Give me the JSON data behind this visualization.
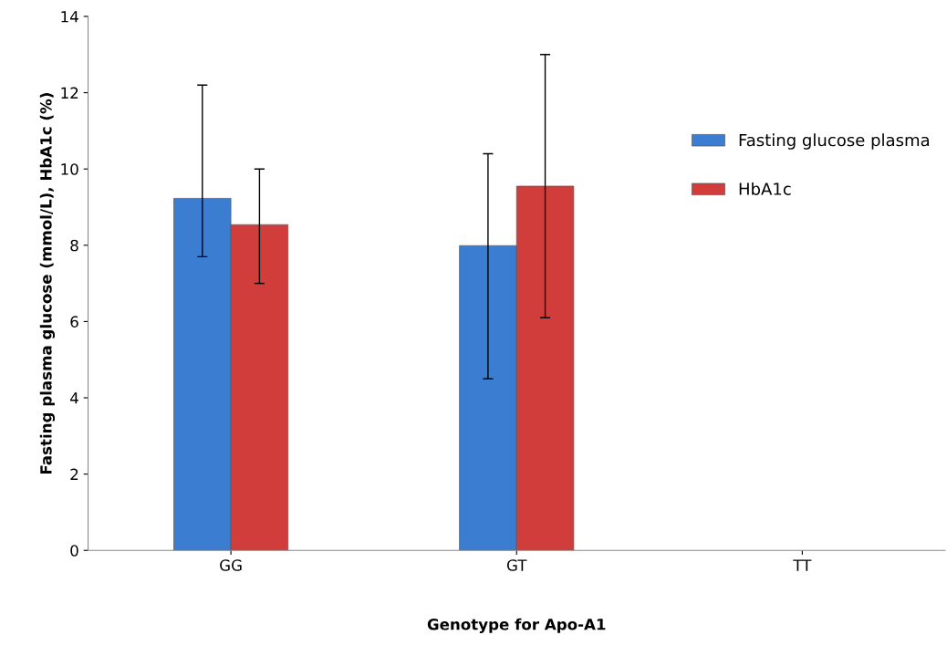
{
  "chart_data": {
    "type": "bar",
    "xlabel": "Genotype for Apo-A1",
    "ylabel": "Fasting plasma glucose (mmol/L), HbA1c (%)",
    "categories": [
      "GG",
      "GT",
      "TT"
    ],
    "series": [
      {
        "name": "Fasting glucose plasma",
        "color": "#3b7dd0",
        "values": [
          9.23,
          7.99,
          null
        ],
        "errors": [
          [
            7.7,
            12.2
          ],
          [
            4.5,
            10.4
          ],
          null
        ]
      },
      {
        "name": "HbA1c",
        "color": "#d03d3a",
        "values": [
          8.54,
          9.55,
          null
        ],
        "errors": [
          [
            7.0,
            10.0
          ],
          [
            6.1,
            13.0
          ],
          null
        ]
      }
    ],
    "ylim": [
      0,
      14
    ],
    "yticks": [
      0,
      2,
      4,
      6,
      8,
      10,
      12,
      14
    ],
    "grid": false,
    "legend": "right"
  }
}
